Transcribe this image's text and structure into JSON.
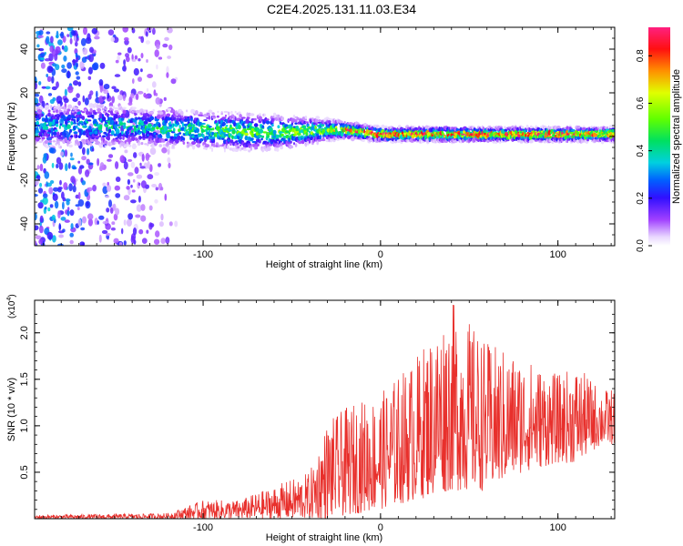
{
  "figure": {
    "title": "C2E4.2025.131.11.03.E34"
  },
  "chart_data": [
    {
      "type": "heatmap",
      "title": "C2E4.2025.131.11.03.E34",
      "xlabel": "Height of straight line (km)",
      "ylabel": "Frequency (Hz)",
      "xlim": [
        -195,
        132
      ],
      "ylim": [
        -50,
        50
      ],
      "x_ticks": [
        -100,
        0,
        100
      ],
      "y_ticks": [
        -40,
        -20,
        0,
        20,
        40
      ],
      "colorbar": {
        "label": "Normalized spectral amplitude",
        "range": [
          0,
          0.92
        ],
        "ticks": [
          0.0,
          0.2,
          0.4,
          0.6,
          0.8
        ]
      },
      "band_profile": [
        {
          "x": -185,
          "center_hz": 5,
          "half_width_hz": 8,
          "peak": 0.35
        },
        {
          "x": -160,
          "center_hz": 5,
          "half_width_hz": 8,
          "peak": 0.4
        },
        {
          "x": -130,
          "center_hz": 4,
          "half_width_hz": 7,
          "peak": 0.45
        },
        {
          "x": -100,
          "center_hz": 3,
          "half_width_hz": 7,
          "peak": 0.5
        },
        {
          "x": -75,
          "center_hz": 2,
          "half_width_hz": 7,
          "peak": 0.55
        },
        {
          "x": -50,
          "center_hz": 2,
          "half_width_hz": 6,
          "peak": 0.55
        },
        {
          "x": -30,
          "center_hz": 3,
          "half_width_hz": 4,
          "peak": 0.6
        },
        {
          "x": -20,
          "center_hz": 3,
          "half_width_hz": 3,
          "peak": 0.8
        },
        {
          "x": 0,
          "center_hz": 1,
          "half_width_hz": 2.5,
          "peak": 0.9
        },
        {
          "x": 50,
          "center_hz": 1,
          "half_width_hz": 2.5,
          "peak": 0.9
        },
        {
          "x": 100,
          "center_hz": 1,
          "half_width_hz": 2.5,
          "peak": 0.9
        },
        {
          "x": 130,
          "center_hz": 1,
          "half_width_hz": 2.5,
          "peak": 0.85
        }
      ],
      "background_scatter_region": {
        "x": [
          -195,
          -115
        ],
        "y": [
          -50,
          50
        ],
        "level": 0.1
      }
    },
    {
      "type": "line",
      "xlabel": "Height of straight line (km)",
      "ylabel": "SNR (10 * v/v)",
      "y_multiplier": "(x10",
      "y_multiplier_exp": "4",
      "y_multiplier_close": ")",
      "xlim": [
        -195,
        132
      ],
      "ylim": [
        0,
        2.35
      ],
      "x_ticks": [
        -100,
        0,
        100
      ],
      "y_ticks": [
        0.5,
        1.0,
        1.5,
        2.0
      ],
      "y_tick_labels": [
        "0.5",
        "1.0",
        "1.5",
        "2.0"
      ],
      "series": [
        {
          "color": "#e8302c",
          "envelope": [
            {
              "x": -195,
              "lo": 0.0,
              "hi": 0.04
            },
            {
              "x": -150,
              "lo": 0.0,
              "hi": 0.05
            },
            {
              "x": -120,
              "lo": 0.0,
              "hi": 0.06
            },
            {
              "x": -100,
              "lo": 0.0,
              "hi": 0.2
            },
            {
              "x": -80,
              "lo": 0.0,
              "hi": 0.2
            },
            {
              "x": -60,
              "lo": 0.0,
              "hi": 0.35
            },
            {
              "x": -40,
              "lo": 0.0,
              "hi": 0.5
            },
            {
              "x": -30,
              "lo": 0.0,
              "hi": 1.05
            },
            {
              "x": -15,
              "lo": 0.05,
              "hi": 1.25
            },
            {
              "x": 0,
              "lo": 0.1,
              "hi": 1.35
            },
            {
              "x": 20,
              "lo": 0.2,
              "hi": 1.75
            },
            {
              "x": 40,
              "lo": 0.3,
              "hi": 2.35
            },
            {
              "x": 60,
              "lo": 0.3,
              "hi": 1.9
            },
            {
              "x": 80,
              "lo": 0.5,
              "hi": 1.75
            },
            {
              "x": 100,
              "lo": 0.6,
              "hi": 1.55
            },
            {
              "x": 110,
              "lo": 0.6,
              "hi": 1.65
            },
            {
              "x": 125,
              "lo": 0.8,
              "hi": 1.4
            },
            {
              "x": 132,
              "lo": 0.8,
              "hi": 1.4
            }
          ]
        }
      ]
    }
  ]
}
